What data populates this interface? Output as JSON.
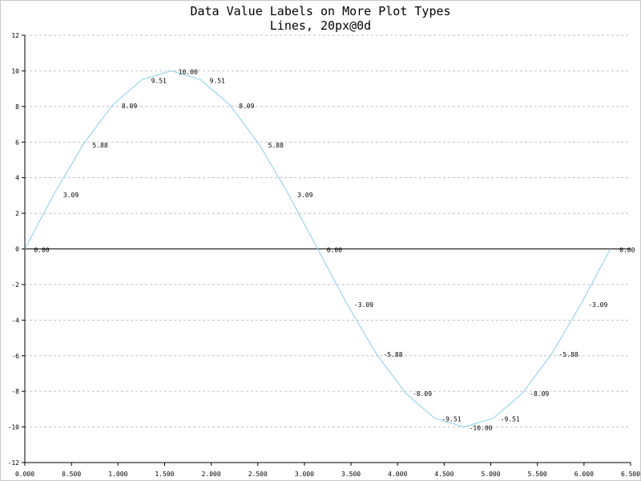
{
  "chart_data": {
    "type": "line",
    "title": "Data Value Labels on More Plot Types",
    "subtitle": "Lines, 20px@0d",
    "xlabel": "",
    "ylabel": "",
    "xlim": [
      0,
      6.5
    ],
    "ylim": [
      -12,
      12
    ],
    "x_ticks": [
      "0.000",
      "0.500",
      "1.000",
      "1.500",
      "2.000",
      "2.500",
      "3.000",
      "3.500",
      "4.000",
      "4.500",
      "5.000",
      "5.500",
      "6.000",
      "6.500"
    ],
    "y_ticks": [
      "-12",
      "-10",
      "-8",
      "-6",
      "-4",
      "-2",
      "0",
      "2",
      "4",
      "6",
      "8",
      "10",
      "12"
    ],
    "grid": {
      "x": false,
      "y": true,
      "style": "dashed"
    },
    "series": [
      {
        "x": [
          0,
          0.314,
          0.628,
          0.942,
          1.257,
          1.571,
          1.885,
          2.199,
          2.513,
          2.827,
          3.142,
          3.456,
          3.77,
          4.084,
          4.398,
          4.712,
          5.027,
          5.341,
          5.655,
          5.969,
          6.283
        ],
        "values": [
          0.0,
          3.09,
          5.88,
          8.09,
          9.51,
          10.0,
          9.51,
          8.09,
          5.88,
          3.09,
          0.0,
          -3.09,
          -5.88,
          -8.09,
          -9.51,
          -10.0,
          -9.51,
          -8.09,
          -5.88,
          -3.09,
          0.0
        ],
        "labels": [
          "0.00",
          "3.09",
          "5.88",
          "8.09",
          "9.51",
          "10.00",
          "9.51",
          "8.09",
          "5.88",
          "3.09",
          "0.00",
          "-3.09",
          "-5.88",
          "-8.09",
          "-9.51",
          "-10.00",
          "-9.51",
          "-8.09",
          "-5.88",
          "-3.09",
          "0.00"
        ],
        "color": "#87ceeb"
      }
    ]
  }
}
